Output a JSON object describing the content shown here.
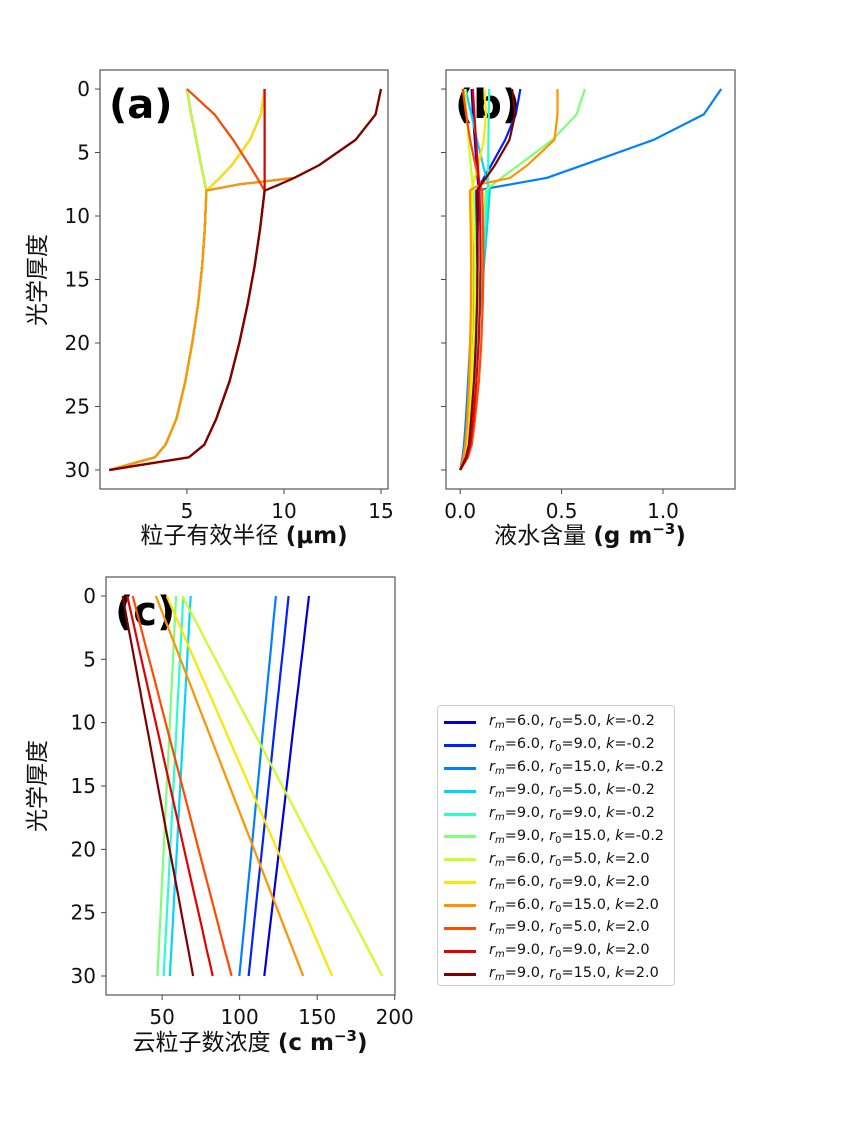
{
  "legend_symbols": {
    "r": "r",
    "sub_m": "m",
    "sub_0": "0",
    "k": "k",
    "eq": "=",
    "sep": ", "
  },
  "legend": [
    {
      "rm": "6.0",
      "r0": "5.0",
      "k": "-0.2",
      "color": "#0000d4"
    },
    {
      "rm": "6.0",
      "r0": "9.0",
      "k": "-0.2",
      "color": "#0022ff"
    },
    {
      "rm": "6.0",
      "r0": "15.0",
      "k": "-0.2",
      "color": "#0080ff"
    },
    {
      "rm": "9.0",
      "r0": "5.0",
      "k": "-0.2",
      "color": "#00d4ff"
    },
    {
      "rm": "9.0",
      "r0": "9.0",
      "k": "-0.2",
      "color": "#29ffce"
    },
    {
      "rm": "9.0",
      "r0": "15.0",
      "k": "-0.2",
      "color": "#7dff7a"
    },
    {
      "rm": "6.0",
      "r0": "5.0",
      "k": "2.0",
      "color": "#c8ff29"
    },
    {
      "rm": "6.0",
      "r0": "9.0",
      "k": "2.0",
      "color": "#ffe500"
    },
    {
      "rm": "6.0",
      "r0": "15.0",
      "k": "2.0",
      "color": "#ff9400"
    },
    {
      "rm": "9.0",
      "r0": "5.0",
      "k": "2.0",
      "color": "#ff4a00"
    },
    {
      "rm": "9.0",
      "r0": "9.0",
      "k": "2.0",
      "color": "#e30000"
    },
    {
      "rm": "9.0",
      "r0": "15.0",
      "k": "2.0",
      "color": "#800000"
    }
  ],
  "chart_data": [
    {
      "type": "line",
      "panel_label": "(a)",
      "xlabel": {
        "text": "粒子有效半径 ",
        "unit_pre": "(μm)",
        "unit_sup": "",
        "unit_post": ""
      },
      "ylabel": "光学厚度",
      "xlim": [
        0.52,
        15.36
      ],
      "ylim": [
        -1.5,
        31.5
      ],
      "y_inverted": true,
      "xticks": [
        5,
        10,
        15
      ],
      "xtick_labels": [
        "5",
        "10",
        "15"
      ],
      "yticks": [
        0,
        5,
        10,
        15,
        20,
        25,
        30
      ],
      "ytick_labels": [
        "0",
        "5",
        "10",
        "15",
        "20",
        "25",
        "30"
      ],
      "y": [
        0,
        2,
        4,
        6,
        7,
        7.5,
        8,
        11,
        14,
        17,
        20,
        23,
        26,
        28,
        29,
        30
      ],
      "series": [
        {
          "x": [
            5,
            5.22,
            5.48,
            5.73,
            5.87,
            5.93,
            6,
            5.92,
            5.78,
            5.57,
            5.27,
            4.92,
            4.45,
            3.9,
            3.35,
            1.0
          ]
        },
        {
          "x": [
            9,
            8.81,
            8.25,
            7.31,
            6.7,
            6.35,
            6,
            5.92,
            5.78,
            5.57,
            5.27,
            4.92,
            4.45,
            3.9,
            3.35,
            1.0
          ]
        },
        {
          "x": [
            15,
            14.72,
            13.69,
            11.81,
            10.53,
            7.7,
            6,
            5.92,
            5.78,
            5.57,
            5.27,
            4.92,
            4.45,
            3.9,
            3.35,
            1.0
          ]
        },
        {
          "x": [
            5,
            6.42,
            7.38,
            8.22,
            8.62,
            8.81,
            9,
            8.77,
            8.48,
            8.12,
            7.7,
            7.2,
            6.5,
            5.9,
            5.1,
            1.0
          ]
        },
        {
          "x": [
            9,
            9,
            9,
            9,
            9,
            9,
            9,
            8.77,
            8.48,
            8.12,
            7.7,
            7.2,
            6.5,
            5.9,
            5.1,
            1.0
          ]
        },
        {
          "x": [
            15,
            14.72,
            13.69,
            11.81,
            10.53,
            9.79,
            9,
            8.77,
            8.48,
            8.12,
            7.7,
            7.2,
            6.5,
            5.9,
            5.1,
            1.0
          ]
        },
        {
          "x": [
            5,
            5.22,
            5.48,
            5.73,
            5.87,
            5.93,
            6,
            5.92,
            5.78,
            5.57,
            5.27,
            4.92,
            4.45,
            3.9,
            3.35,
            1.0
          ]
        },
        {
          "x": [
            9,
            8.81,
            8.25,
            7.31,
            6.7,
            6.35,
            6,
            5.92,
            5.78,
            5.57,
            5.27,
            4.92,
            4.45,
            3.9,
            3.35,
            1.0
          ]
        },
        {
          "x": [
            15,
            14.72,
            13.69,
            11.81,
            10.53,
            7.7,
            6,
            5.92,
            5.78,
            5.57,
            5.27,
            4.92,
            4.45,
            3.9,
            3.35,
            1.0
          ]
        },
        {
          "x": [
            5,
            6.42,
            7.38,
            8.22,
            8.62,
            8.81,
            9,
            8.77,
            8.48,
            8.12,
            7.7,
            7.2,
            6.5,
            5.9,
            5.1,
            1.0
          ]
        },
        {
          "x": [
            9,
            9,
            9,
            9,
            9,
            9,
            9,
            8.77,
            8.48,
            8.12,
            7.7,
            7.2,
            6.5,
            5.9,
            5.1,
            1.0
          ]
        },
        {
          "x": [
            15,
            14.72,
            13.69,
            11.81,
            10.53,
            9.79,
            9,
            8.77,
            8.48,
            8.12,
            7.7,
            7.2,
            6.5,
            5.9,
            5.1,
            1.0
          ]
        }
      ]
    },
    {
      "type": "line",
      "panel_label": "(b)",
      "xlabel": {
        "text": "液水含量 ",
        "unit_pre": "(g m",
        "unit_sup": "−3",
        "unit_post": ")"
      },
      "ylabel": "",
      "xlim": [
        -0.07,
        1.355
      ],
      "ylim": [
        -1.5,
        31.5
      ],
      "y_inverted": true,
      "xticks": [
        0.0,
        0.5,
        1.0
      ],
      "xtick_labels": [
        "0.0",
        "0.5",
        "1.0"
      ],
      "yticks": [
        0,
        5,
        10,
        15,
        20,
        25,
        30
      ],
      "ytick_labels": [],
      "y": [
        0,
        2,
        4,
        6,
        7,
        7.5,
        8,
        11,
        14,
        17,
        20,
        23,
        26,
        28,
        29,
        30
      ],
      "series": [
        {
          "x": [
            0.056,
            0.063,
            0.072,
            0.081,
            0.086,
            0.089,
            0.091,
            0.086,
            0.078,
            0.069,
            0.057,
            0.045,
            0.033,
            0.022,
            0.014,
            0.0
          ]
        },
        {
          "x": [
            0.297,
            0.274,
            0.222,
            0.153,
            0.117,
            0.099,
            0.083,
            0.078,
            0.071,
            0.062,
            0.052,
            0.041,
            0.03,
            0.02,
            0.012,
            0.0
          ]
        },
        {
          "x": [
            1.287,
            1.201,
            0.954,
            0.604,
            0.426,
            0.25,
            0.078,
            0.074,
            0.067,
            0.059,
            0.049,
            0.039,
            0.028,
            0.019,
            0.012,
            0.0
          ]
        },
        {
          "x": [
            0.026,
            0.055,
            0.083,
            0.113,
            0.129,
            0.138,
            0.146,
            0.132,
            0.117,
            0.101,
            0.084,
            0.067,
            0.048,
            0.035,
            0.023,
            0.0
          ]
        },
        {
          "x": [
            0.143,
            0.141,
            0.139,
            0.138,
            0.137,
            0.136,
            0.136,
            0.123,
            0.109,
            0.093,
            0.078,
            0.062,
            0.045,
            0.033,
            0.021,
            0.0
          ]
        },
        {
          "x": [
            0.615,
            0.574,
            0.455,
            0.288,
            0.203,
            0.162,
            0.126,
            0.114,
            0.101,
            0.086,
            0.072,
            0.057,
            0.041,
            0.03,
            0.019,
            0.0
          ]
        },
        {
          "x": [
            0.024,
            0.031,
            0.041,
            0.052,
            0.058,
            0.061,
            0.065,
            0.071,
            0.074,
            0.073,
            0.067,
            0.06,
            0.048,
            0.034,
            0.022,
            0.001
          ]
        },
        {
          "x": [
            0.119,
            0.127,
            0.117,
            0.09,
            0.072,
            0.063,
            0.054,
            0.059,
            0.061,
            0.061,
            0.056,
            0.05,
            0.04,
            0.028,
            0.018,
            0.0
          ]
        },
        {
          "x": [
            0.48,
            0.48,
            0.465,
            0.331,
            0.246,
            0.098,
            0.048,
            0.052,
            0.054,
            0.053,
            0.049,
            0.044,
            0.035,
            0.025,
            0.016,
            0.0
          ]
        },
        {
          "x": [
            0.012,
            0.029,
            0.049,
            0.075,
            0.091,
            0.099,
            0.108,
            0.113,
            0.115,
            0.111,
            0.104,
            0.092,
            0.073,
            0.057,
            0.038,
            0.0
          ]
        },
        {
          "x": [
            0.062,
            0.07,
            0.078,
            0.087,
            0.091,
            0.093,
            0.095,
            0.099,
            0.1,
            0.097,
            0.091,
            0.08,
            0.064,
            0.05,
            0.033,
            0.0
          ]
        },
        {
          "x": [
            0.256,
            0.271,
            0.243,
            0.171,
            0.127,
            0.104,
            0.082,
            0.086,
            0.086,
            0.083,
            0.077,
            0.068,
            0.054,
            0.043,
            0.028,
            0.0
          ]
        }
      ]
    },
    {
      "type": "line",
      "panel_label": "(c)",
      "xlabel": {
        "text": "云粒子数浓度 ",
        "unit_pre": "(c m",
        "unit_sup": "−3",
        "unit_post": ")"
      },
      "ylabel": "光学厚度",
      "xlim": [
        13.8,
        200.2
      ],
      "ylim": [
        -1.5,
        31.5
      ],
      "y_inverted": true,
      "xticks": [
        50,
        100,
        150,
        200
      ],
      "xtick_labels": [
        "50",
        "100",
        "150",
        "200"
      ],
      "yticks": [
        0,
        5,
        10,
        15,
        20,
        25,
        30
      ],
      "ytick_labels": [
        "0",
        "5",
        "10",
        "15",
        "20",
        "25",
        "30"
      ],
      "y": [
        0,
        2,
        4,
        6,
        7,
        7.5,
        8,
        11,
        14,
        17,
        20,
        23,
        26,
        28,
        29,
        30
      ],
      "series": [
        {
          "x": [
            144.7,
            142.8,
            140.9,
            138.9,
            138.0,
            137.5,
            137.0,
            134.1,
            131.3,
            128.4,
            125.5,
            122.6,
            119.7,
            117.8,
            116.9,
            115.9
          ]
        },
        {
          "x": [
            131.6,
            129.9,
            128.2,
            126.4,
            125.6,
            125.2,
            124.7,
            122.1,
            119.6,
            117.0,
            114.4,
            111.8,
            109.2,
            107.5,
            106.7,
            105.8
          ]
        },
        {
          "x": [
            123.4,
            121.8,
            120.3,
            118.7,
            117.9,
            117.5,
            117.1,
            114.7,
            112.4,
            110.0,
            107.7,
            105.3,
            103.0,
            101.4,
            100.6,
            99.8
          ]
        },
        {
          "x": [
            68.4,
            67.5,
            66.6,
            65.7,
            65.3,
            65.1,
            64.8,
            63.5,
            62.1,
            60.8,
            59.5,
            58.1,
            56.8,
            55.9,
            55.4,
            55.0
          ]
        },
        {
          "x": [
            63.6,
            62.8,
            61.9,
            61.1,
            60.7,
            60.5,
            60.2,
            59.0,
            57.7,
            56.5,
            55.2,
            54.0,
            52.7,
            51.8,
            51.4,
            51.0
          ]
        },
        {
          "x": [
            59.0,
            58.2,
            57.4,
            56.6,
            56.2,
            56.0,
            55.8,
            54.6,
            53.4,
            52.2,
            51.0,
            49.8,
            48.6,
            47.8,
            47.4,
            47.0
          ]
        },
        {
          "x": [
            63.0,
            71.6,
            80.2,
            88.8,
            93.1,
            95.3,
            97.4,
            110.3,
            123.2,
            136.1,
            149.0,
            161.9,
            174.8,
            183.4,
            187.7,
            192.0
          ]
        },
        {
          "x": [
            53.0,
            60.1,
            67.2,
            74.3,
            77.9,
            79.7,
            81.5,
            92.1,
            102.8,
            113.5,
            124.1,
            134.8,
            145.5,
            152.6,
            156.1,
            159.7
          ]
        },
        {
          "x": [
            46.0,
            52.3,
            58.7,
            65.0,
            68.2,
            69.8,
            71.3,
            80.8,
            90.3,
            99.8,
            109.3,
            118.8,
            128.3,
            134.7,
            137.8,
            141.0
          ]
        },
        {
          "x": [
            31.0,
            35.3,
            39.5,
            43.8,
            45.9,
            47.0,
            48.0,
            54.4,
            60.8,
            67.2,
            73.5,
            79.9,
            86.3,
            90.5,
            92.7,
            94.8
          ]
        },
        {
          "x": [
            27.5,
            31.2,
            34.8,
            38.5,
            40.4,
            41.3,
            42.2,
            47.7,
            53.2,
            58.7,
            64.2,
            69.7,
            75.3,
            78.9,
            80.8,
            82.6
          ]
        },
        {
          "x": [
            24.5,
            27.5,
            30.6,
            33.6,
            35.1,
            35.9,
            36.6,
            41.2,
            45.7,
            50.3,
            54.8,
            59.4,
            63.9,
            67.0,
            68.5,
            70.0
          ]
        }
      ]
    }
  ]
}
